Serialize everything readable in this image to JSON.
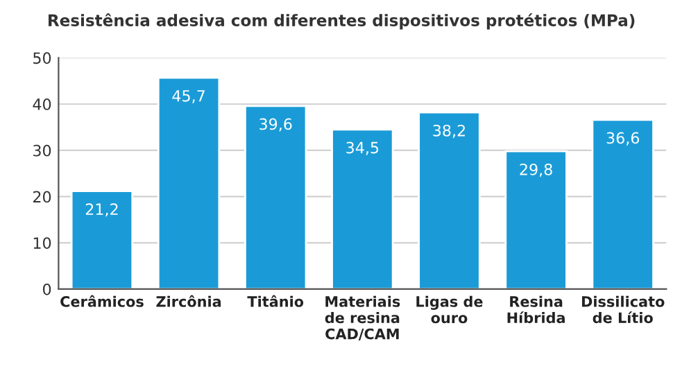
{
  "chart_data": {
    "type": "bar",
    "title": "Resistência adesiva com diferentes dispositivos protéticos (MPa)",
    "categories": [
      "Cerâmicos",
      "Zircônia",
      "Titânio",
      "Materiais\nde resina\nCAD/CAM",
      "Ligas de\nouro",
      "Resina\nHíbrida",
      "Dissilicato\nde Lítio"
    ],
    "values": [
      21.2,
      45.7,
      39.6,
      34.5,
      38.2,
      29.8,
      36.6
    ],
    "value_labels": [
      "21,2",
      "45,7",
      "39,6",
      "34,5",
      "38,2",
      "29,8",
      "36,6"
    ],
    "color": "#1a9bd7",
    "ylim": [
      0,
      50
    ],
    "yticks": [
      0,
      10,
      20,
      30,
      40,
      50
    ],
    "grid": "y",
    "legend": false
  }
}
